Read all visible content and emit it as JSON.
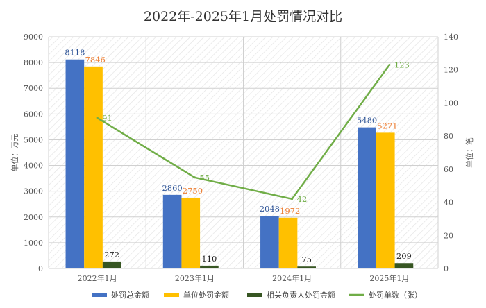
{
  "chart_data": {
    "type": "bar",
    "title": "2022年-2025年1月处罚情况对比",
    "categories": [
      "2022年1月",
      "2023年1月",
      "2024年1月",
      "2025年1月"
    ],
    "series": [
      {
        "name": "处罚总金额",
        "type": "bar",
        "axis": "left",
        "values": [
          8118,
          2860,
          2048,
          5480
        ],
        "color": "#4472C4",
        "label_color": "#2F5597"
      },
      {
        "name": "单位处罚金额",
        "type": "bar",
        "axis": "left",
        "values": [
          7846,
          2750,
          1972,
          5271
        ],
        "color": "#FFC000",
        "label_color": "#ED7D31"
      },
      {
        "name": "相关负责人处罚金额",
        "type": "bar",
        "axis": "left",
        "values": [
          272,
          110,
          75,
          209
        ],
        "color": "#375623",
        "label_color": "#222222"
      },
      {
        "name": "处罚单数（张）",
        "type": "line",
        "axis": "right",
        "values": [
          91,
          55,
          42,
          123
        ],
        "color": "#70AD47",
        "label_color": "#70AD47"
      }
    ],
    "y_left": {
      "label": "单位：万元",
      "min": 0,
      "max": 9000,
      "ticks": [
        0,
        1000,
        2000,
        3000,
        4000,
        5000,
        6000,
        7000,
        8000,
        9000
      ]
    },
    "y_right": {
      "label": "单位：笔",
      "min": 0,
      "max": 140,
      "ticks": [
        0,
        20,
        40,
        60,
        80,
        100,
        120,
        140
      ]
    },
    "grid": true,
    "legend_position": "bottom"
  }
}
